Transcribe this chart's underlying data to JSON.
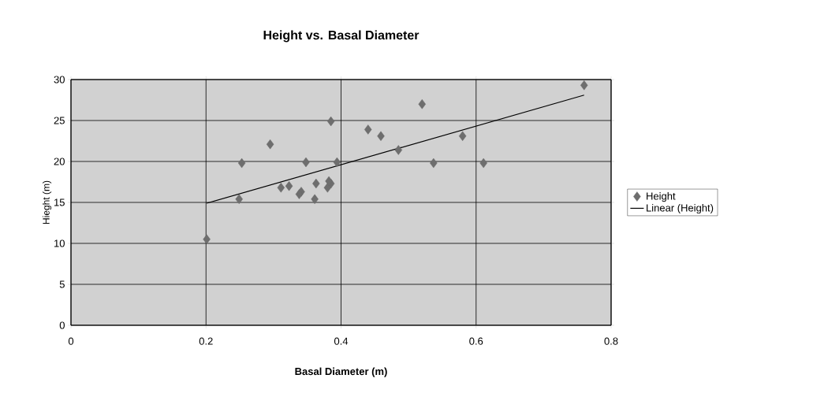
{
  "chart_data": {
    "type": "scatter",
    "title": "Height vs. Basal Diameter",
    "xlabel": "Basal Diameter (m)",
    "ylabel": "Hieght (m)",
    "xlim": [
      0,
      0.8
    ],
    "ylim": [
      0,
      30
    ],
    "xticks": [
      0,
      0.2,
      0.4,
      0.6,
      0.8
    ],
    "yticks": [
      0,
      5,
      10,
      15,
      20,
      25,
      30
    ],
    "grid": true,
    "legend": "right",
    "series": [
      {
        "name": "Height",
        "marker": "diamond",
        "color": "#6e6e6e",
        "x": [
          0.201,
          0.253,
          0.249,
          0.295,
          0.348,
          0.385,
          0.394,
          0.311,
          0.323,
          0.341,
          0.338,
          0.363,
          0.361,
          0.385,
          0.38,
          0.382,
          0.44,
          0.459,
          0.485,
          0.52,
          0.537,
          0.58,
          0.611,
          0.76
        ],
        "values": [
          10.5,
          19.8,
          15.4,
          22.1,
          19.9,
          24.9,
          19.9,
          16.8,
          17.0,
          16.3,
          16.0,
          17.3,
          15.4,
          17.3,
          16.8,
          17.6,
          23.9,
          23.1,
          21.4,
          27.0,
          19.8,
          23.1,
          19.8,
          29.3
        ]
      },
      {
        "name": "Linear (Height)",
        "type": "line",
        "marker": "none",
        "line_style": "solid",
        "color": "#000000",
        "x": [
          0.201,
          0.76
        ],
        "values": [
          14.9,
          28.1
        ]
      }
    ]
  }
}
